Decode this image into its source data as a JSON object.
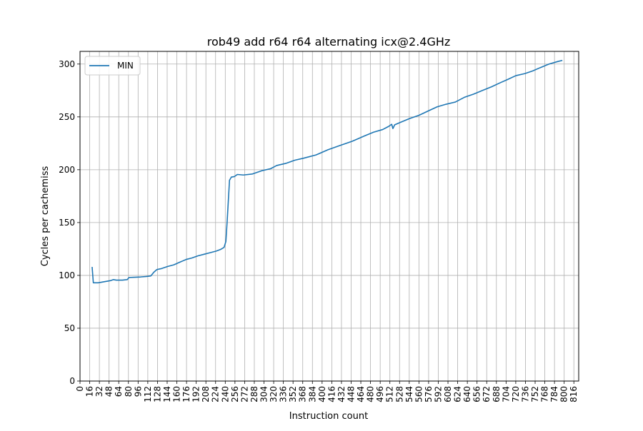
{
  "chart_data": {
    "type": "line",
    "title": "rob49 add r64 r64 alternating icx@2.4GHz",
    "xlabel": "Instruction count",
    "ylabel": "Cycles per cachemiss",
    "xlim": [
      0,
      824
    ],
    "ylim": [
      0,
      312
    ],
    "x_ticks": [
      0,
      16,
      32,
      48,
      64,
      80,
      96,
      112,
      128,
      144,
      160,
      176,
      192,
      208,
      224,
      240,
      256,
      272,
      288,
      304,
      320,
      336,
      352,
      368,
      384,
      400,
      416,
      432,
      448,
      464,
      480,
      496,
      512,
      528,
      544,
      560,
      576,
      592,
      608,
      624,
      640,
      656,
      672,
      688,
      704,
      720,
      736,
      752,
      768,
      784,
      800,
      816
    ],
    "y_ticks": [
      0,
      50,
      100,
      150,
      200,
      250,
      300
    ],
    "grid": true,
    "legend": "top-left",
    "series": [
      {
        "name": "MIN",
        "color": "#1f77b4",
        "points": [
          [
            20,
            108
          ],
          [
            22,
            93
          ],
          [
            30,
            93
          ],
          [
            40,
            94
          ],
          [
            50,
            95
          ],
          [
            55,
            96
          ],
          [
            60,
            95.5
          ],
          [
            70,
            95.5
          ],
          [
            78,
            96
          ],
          [
            81,
            98
          ],
          [
            90,
            98.2
          ],
          [
            100,
            98.5
          ],
          [
            110,
            99
          ],
          [
            117,
            99.5
          ],
          [
            122,
            103
          ],
          [
            127,
            105.5
          ],
          [
            135,
            106.5
          ],
          [
            145,
            108.5
          ],
          [
            155,
            110
          ],
          [
            165,
            112.5
          ],
          [
            175,
            115
          ],
          [
            185,
            116.5
          ],
          [
            195,
            118.5
          ],
          [
            205,
            120
          ],
          [
            215,
            121.5
          ],
          [
            225,
            123
          ],
          [
            232,
            124.5
          ],
          [
            238,
            126.5
          ],
          [
            241,
            132
          ],
          [
            243,
            150
          ],
          [
            245,
            170
          ],
          [
            247,
            190
          ],
          [
            250,
            193
          ],
          [
            255,
            193.5
          ],
          [
            260,
            195.5
          ],
          [
            270,
            195
          ],
          [
            285,
            196
          ],
          [
            300,
            199
          ],
          [
            315,
            201
          ],
          [
            325,
            204
          ],
          [
            340,
            206
          ],
          [
            355,
            209
          ],
          [
            370,
            211
          ],
          [
            390,
            214
          ],
          [
            410,
            219
          ],
          [
            430,
            223
          ],
          [
            450,
            227
          ],
          [
            470,
            232
          ],
          [
            485,
            235.5
          ],
          [
            500,
            238
          ],
          [
            510,
            241
          ],
          [
            515,
            243
          ],
          [
            517,
            239
          ],
          [
            520,
            242.5
          ],
          [
            530,
            245
          ],
          [
            545,
            248.5
          ],
          [
            560,
            251.5
          ],
          [
            575,
            255.5
          ],
          [
            590,
            259.5
          ],
          [
            605,
            262
          ],
          [
            620,
            264
          ],
          [
            635,
            268.5
          ],
          [
            650,
            271.5
          ],
          [
            665,
            275
          ],
          [
            680,
            278.5
          ],
          [
            695,
            282.5
          ],
          [
            705,
            285
          ],
          [
            720,
            289
          ],
          [
            735,
            291
          ],
          [
            748,
            293.5
          ],
          [
            760,
            296.5
          ],
          [
            775,
            300
          ],
          [
            790,
            302.5
          ],
          [
            797,
            303.5
          ]
        ]
      }
    ]
  }
}
